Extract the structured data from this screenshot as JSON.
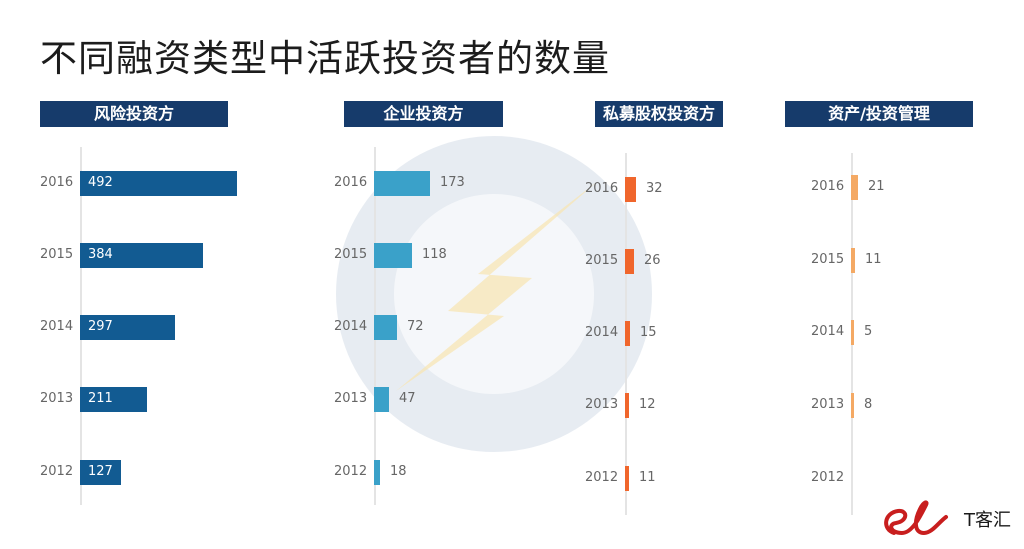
{
  "title": "不同融资类型中活跃投资者的数量",
  "colors": {
    "header_bg": "#163b6b",
    "venture": "#125b92",
    "corporate": "#3aa1c9",
    "private_equity": "#f0662c",
    "asset_mgmt": "#f4a964"
  },
  "chart_data": [
    {
      "type": "bar",
      "orientation": "horizontal",
      "title": "风险投资方",
      "categories": [
        "2016",
        "2015",
        "2014",
        "2013",
        "2012"
      ],
      "values": [
        492,
        384,
        297,
        211,
        127
      ],
      "data_labels": [
        "492",
        "384",
        "297",
        "211",
        "127"
      ]
    },
    {
      "type": "bar",
      "orientation": "horizontal",
      "title": "企业投资方",
      "categories": [
        "2016",
        "2015",
        "2014",
        "2013",
        "2012"
      ],
      "values": [
        173,
        118,
        72,
        47,
        18
      ],
      "data_labels": [
        "173",
        "118",
        "72",
        "47",
        "18"
      ]
    },
    {
      "type": "bar",
      "orientation": "horizontal",
      "title": "私募股权投资方",
      "categories": [
        "2016",
        "2015",
        "2014",
        "2013",
        "2012"
      ],
      "values": [
        32,
        26,
        15,
        12,
        11
      ],
      "data_labels": [
        "32",
        "26",
        "15",
        "12",
        "11"
      ]
    },
    {
      "type": "bar",
      "orientation": "horizontal",
      "title": "资产/投资管理",
      "categories": [
        "2016",
        "2015",
        "2014",
        "2013",
        "2012"
      ],
      "values": [
        21,
        11,
        5,
        8,
        null
      ],
      "data_labels": [
        "21",
        "11",
        "5",
        "8",
        ""
      ]
    }
  ],
  "logo": {
    "text": "T客汇",
    "icon": "el-brand-icon"
  }
}
